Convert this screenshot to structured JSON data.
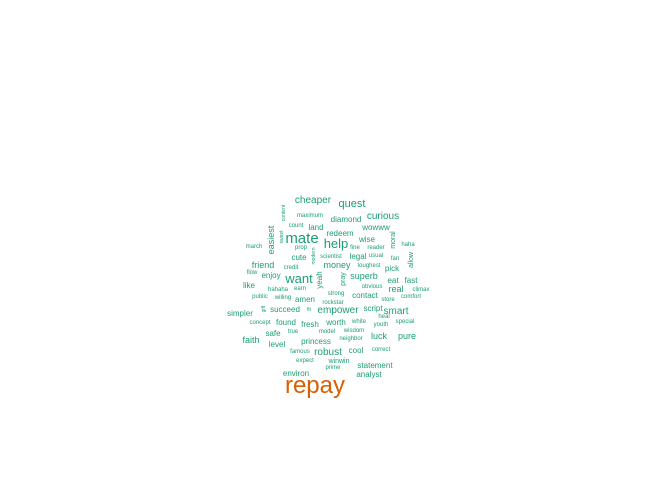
{
  "chart_data": {
    "type": "wordcloud",
    "colors": {
      "largest": "#d95f02",
      "default": "#1b9e77"
    },
    "words": [
      {
        "text": "repay",
        "weight": 100
      },
      {
        "text": "mate",
        "weight": 45
      },
      {
        "text": "help",
        "weight": 42
      },
      {
        "text": "want",
        "weight": 42
      },
      {
        "text": "quest",
        "weight": 34
      },
      {
        "text": "cheaper",
        "weight": 30
      },
      {
        "text": "curious",
        "weight": 30
      },
      {
        "text": "empower",
        "weight": 30
      },
      {
        "text": "robust",
        "weight": 28
      },
      {
        "text": "smart",
        "weight": 28
      },
      {
        "text": "friend",
        "weight": 26
      },
      {
        "text": "money",
        "weight": 26
      },
      {
        "text": "superb",
        "weight": 26
      },
      {
        "text": "real",
        "weight": 26
      },
      {
        "text": "faith",
        "weight": 26
      },
      {
        "text": "luck",
        "weight": 26
      },
      {
        "text": "pure",
        "weight": 26
      },
      {
        "text": "easiest",
        "weight": 26
      },
      {
        "text": "diamond",
        "weight": 22
      },
      {
        "text": "redeem",
        "weight": 22
      },
      {
        "text": "wise",
        "weight": 22
      },
      {
        "text": "legal",
        "weight": 22
      },
      {
        "text": "enjoy",
        "weight": 22
      },
      {
        "text": "like",
        "weight": 22
      },
      {
        "text": "eat",
        "weight": 22
      },
      {
        "text": "fast",
        "weight": 22
      },
      {
        "text": "pick",
        "weight": 22
      },
      {
        "text": "simpler",
        "weight": 22
      },
      {
        "text": "succeed",
        "weight": 22
      },
      {
        "text": "found",
        "weight": 22
      },
      {
        "text": "fresh",
        "weight": 22
      },
      {
        "text": "worth",
        "weight": 22
      },
      {
        "text": "script",
        "weight": 22
      },
      {
        "text": "safe",
        "weight": 22
      },
      {
        "text": "level",
        "weight": 22
      },
      {
        "text": "princess",
        "weight": 22
      },
      {
        "text": "cool",
        "weight": 22
      },
      {
        "text": "environ",
        "weight": 22
      },
      {
        "text": "statement",
        "weight": 22
      },
      {
        "text": "analyst",
        "weight": 22
      },
      {
        "text": "land",
        "weight": 20
      },
      {
        "text": "wowww",
        "weight": 20
      },
      {
        "text": "cute",
        "weight": 20
      },
      {
        "text": "amen",
        "weight": 20
      },
      {
        "text": "contact",
        "weight": 20
      },
      {
        "text": "winwin",
        "weight": 18
      },
      {
        "text": "moral",
        "weight": 18
      },
      {
        "text": "allow",
        "weight": 18
      },
      {
        "text": "yeah",
        "weight": 18
      },
      {
        "text": "pray",
        "weight": 18
      },
      {
        "text": "maximum",
        "weight": 14
      },
      {
        "text": "count",
        "weight": 14
      },
      {
        "text": "march",
        "weight": 14
      },
      {
        "text": "prop",
        "weight": 14
      },
      {
        "text": "fine",
        "weight": 14
      },
      {
        "text": "reader",
        "weight": 14
      },
      {
        "text": "haha",
        "weight": 14
      },
      {
        "text": "flow",
        "weight": 14
      },
      {
        "text": "credit",
        "weight": 14
      },
      {
        "text": "scientist",
        "weight": 14
      },
      {
        "text": "usual",
        "weight": 14
      },
      {
        "text": "fan",
        "weight": 14
      },
      {
        "text": "toughest",
        "weight": 14
      },
      {
        "text": "hahaha",
        "weight": 14
      },
      {
        "text": "earn",
        "weight": 14
      },
      {
        "text": "obvious",
        "weight": 14
      },
      {
        "text": "climax",
        "weight": 14
      },
      {
        "text": "public",
        "weight": 14
      },
      {
        "text": "willing",
        "weight": 14
      },
      {
        "text": "strong",
        "weight": 14
      },
      {
        "text": "store",
        "weight": 14
      },
      {
        "text": "comfort",
        "weight": 14
      },
      {
        "text": "rockstar",
        "weight": 14
      },
      {
        "text": "heal",
        "weight": 14
      },
      {
        "text": "concept",
        "weight": 14
      },
      {
        "text": "white",
        "weight": 14
      },
      {
        "text": "youth",
        "weight": 14
      },
      {
        "text": "special",
        "weight": 14
      },
      {
        "text": "true",
        "weight": 14
      },
      {
        "text": "model",
        "weight": 14
      },
      {
        "text": "wisdom",
        "weight": 14
      },
      {
        "text": "neighbor",
        "weight": 14
      },
      {
        "text": "famous",
        "weight": 14
      },
      {
        "text": "correct",
        "weight": 14
      },
      {
        "text": "expect",
        "weight": 14
      },
      {
        "text": "prime",
        "weight": 14
      },
      {
        "text": "content",
        "weight": 12
      },
      {
        "text": "sweet",
        "weight": 12
      },
      {
        "text": "modern",
        "weight": 12
      },
      {
        "text": "gift",
        "weight": 12
      },
      {
        "text": "fit",
        "weight": 12
      }
    ]
  }
}
